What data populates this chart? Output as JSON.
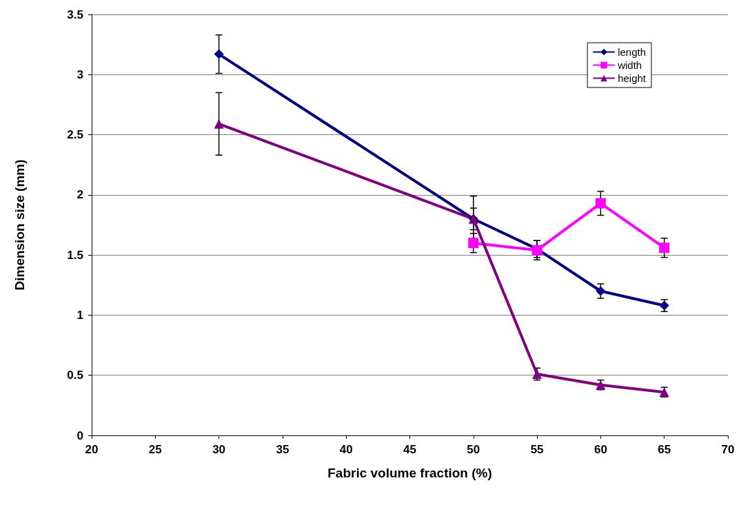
{
  "chart_data": {
    "type": "line",
    "xlabel": "Fabric volume fraction (%)",
    "ylabel": "Dimension size (mm)",
    "xlim": [
      20,
      70
    ],
    "xticks": [
      20,
      25,
      30,
      35,
      40,
      45,
      50,
      55,
      60,
      65,
      70
    ],
    "ylim": [
      0,
      3.5
    ],
    "yticks": [
      0,
      0.5,
      1,
      1.5,
      2,
      2.5,
      3,
      3.5
    ],
    "grid": "y",
    "legend": "top right",
    "line_style": "solid",
    "series": [
      {
        "name": "length",
        "color": "#000080",
        "marker": "diamond",
        "x": [
          30,
          50,
          55,
          60,
          65
        ],
        "values": [
          3.17,
          1.8,
          1.55,
          1.2,
          1.08
        ],
        "errors": [
          0.16,
          0.09,
          0.07,
          0.06,
          0.05
        ]
      },
      {
        "name": "width",
        "color": "#ff00ff",
        "marker": "square",
        "x": [
          50,
          55,
          60,
          65
        ],
        "values": [
          1.6,
          1.54,
          1.93,
          1.56
        ],
        "errors": [
          0.08,
          0.08,
          0.1,
          0.08
        ]
      },
      {
        "name": "height",
        "color": "#800080",
        "marker": "triangle",
        "x": [
          30,
          50,
          55,
          60,
          65
        ],
        "values": [
          2.59,
          1.8,
          0.51,
          0.42,
          0.36
        ],
        "errors": [
          0.26,
          0.19,
          0.05,
          0.04,
          0.04
        ]
      }
    ]
  }
}
